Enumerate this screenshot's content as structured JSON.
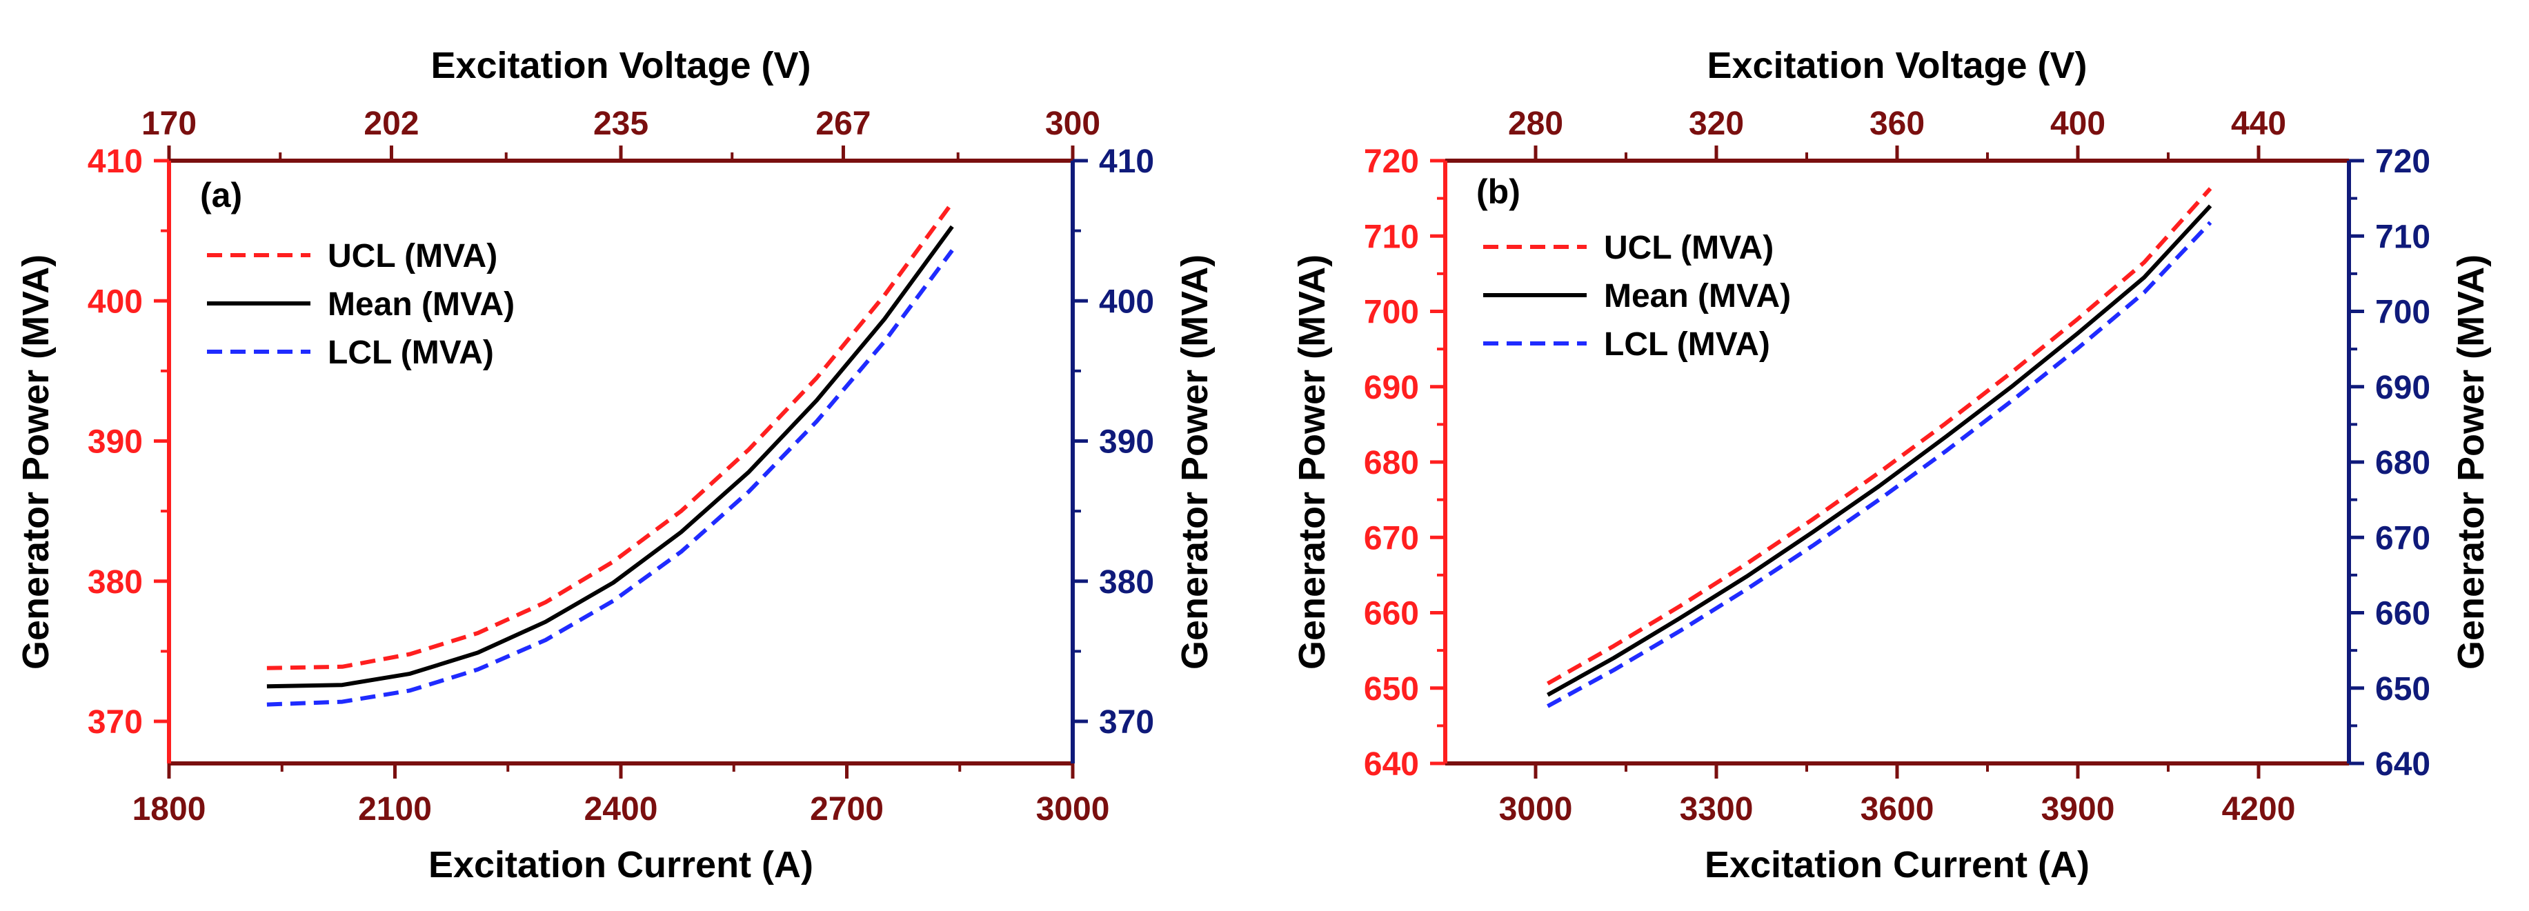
{
  "colors": {
    "ucl": "#ff1f1f",
    "mean": "#000000",
    "lcl": "#1f2bff",
    "left_axis": "#ff1f1f",
    "right_axis": "#0f1a7a",
    "top_axis": "#7a0f0f",
    "bottom_axis": "#7a0f0f",
    "label": "#000000"
  },
  "chart_data": [
    {
      "type": "line",
      "panel_label": "(a)",
      "xlabel": "Excitation Current (A)",
      "x2label": "Excitation Voltage (V)",
      "ylabel": "Generator Power (MVA)",
      "y2label": "Generator Power (MVA)",
      "xlim": [
        1800,
        3000
      ],
      "x2lim": [
        170,
        300
      ],
      "ylim": [
        367,
        410
      ],
      "y2lim": [
        367,
        410
      ],
      "xticks": [
        1800,
        2100,
        2400,
        2700,
        3000
      ],
      "x2ticks": [
        170,
        202,
        235,
        267,
        300
      ],
      "yticks": [
        370,
        380,
        390,
        400,
        410
      ],
      "y2ticks": [
        370,
        380,
        390,
        400,
        410
      ],
      "legend_position": "top-left",
      "series": [
        {
          "name": "UCL (MVA)",
          "style": "dashed",
          "color_key": "ucl",
          "x": [
            1930,
            2030,
            2120,
            2210,
            2300,
            2390,
            2480,
            2570,
            2660,
            2750,
            2840
          ],
          "y": [
            373.8,
            373.9,
            374.8,
            376.3,
            378.5,
            381.4,
            385.0,
            389.4,
            394.5,
            400.4,
            407.0
          ]
        },
        {
          "name": "Mean (MVA)",
          "style": "solid",
          "color_key": "mean",
          "x": [
            1930,
            2030,
            2120,
            2210,
            2300,
            2390,
            2480,
            2570,
            2660,
            2750,
            2840
          ],
          "y": [
            372.5,
            372.6,
            373.4,
            374.9,
            377.1,
            379.9,
            383.5,
            387.8,
            392.9,
            398.7,
            405.3
          ]
        },
        {
          "name": "LCL (MVA)",
          "style": "dashed",
          "color_key": "lcl",
          "x": [
            1930,
            2030,
            2120,
            2210,
            2300,
            2390,
            2480,
            2570,
            2660,
            2750,
            2840
          ],
          "y": [
            371.2,
            371.4,
            372.2,
            373.7,
            375.8,
            378.6,
            382.1,
            386.4,
            391.4,
            397.1,
            403.6
          ]
        }
      ]
    },
    {
      "type": "line",
      "panel_label": "(b)",
      "xlabel": "Excitation Current (A)",
      "x2label": "Excitation Voltage (V)",
      "ylabel": "Generator Power (MVA)",
      "y2label": "Generator Power (MVA)",
      "xlim": [
        2850,
        4350
      ],
      "x2lim": [
        260,
        460
      ],
      "ylim": [
        640,
        720
      ],
      "y2lim": [
        640,
        720
      ],
      "xticks": [
        3000,
        3300,
        3600,
        3900,
        4200
      ],
      "x2ticks": [
        280,
        320,
        360,
        400,
        440
      ],
      "yticks": [
        640,
        650,
        660,
        670,
        680,
        690,
        700,
        710,
        720
      ],
      "y2ticks": [
        640,
        650,
        660,
        670,
        680,
        690,
        700,
        710,
        720
      ],
      "legend_position": "top-left",
      "series": [
        {
          "name": "UCL (MVA)",
          "style": "dashed",
          "color_key": "ucl",
          "x": [
            3020,
            3130,
            3240,
            3350,
            3460,
            3570,
            3680,
            3790,
            3900,
            4010,
            4120
          ],
          "y": [
            650.6,
            655.6,
            660.9,
            666.5,
            672.4,
            678.6,
            685.1,
            691.9,
            699.0,
            706.5,
            716.3
          ]
        },
        {
          "name": "Mean (MVA)",
          "style": "solid",
          "color_key": "mean",
          "x": [
            3020,
            3130,
            3240,
            3350,
            3460,
            3570,
            3680,
            3790,
            3900,
            4010,
            4120
          ],
          "y": [
            649.1,
            654.0,
            659.3,
            664.8,
            670.7,
            676.8,
            683.3,
            690.0,
            697.1,
            704.5,
            714.0
          ]
        },
        {
          "name": "LCL (MVA)",
          "style": "dashed",
          "color_key": "lcl",
          "x": [
            3020,
            3130,
            3240,
            3350,
            3460,
            3570,
            3680,
            3790,
            3900,
            4010,
            4120
          ],
          "y": [
            647.6,
            652.4,
            657.6,
            663.1,
            668.9,
            675.0,
            681.4,
            688.1,
            695.1,
            702.5,
            711.8
          ]
        }
      ]
    }
  ]
}
